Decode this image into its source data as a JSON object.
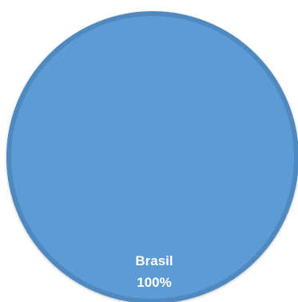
{
  "chart_data": {
    "type": "pie",
    "title": "",
    "legend": "none",
    "slices": [
      {
        "label": "Brasil",
        "value": 100,
        "percent_label": "100%",
        "color": "#5B9BD5",
        "edge_color": "#4F89BF"
      }
    ]
  }
}
